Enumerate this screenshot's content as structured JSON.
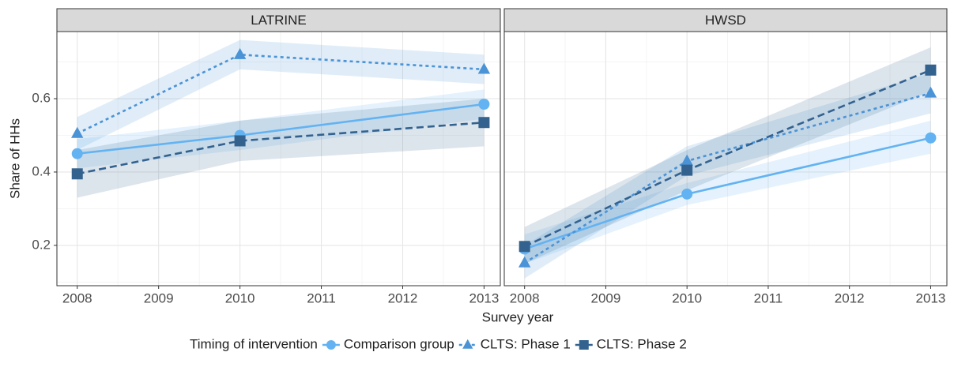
{
  "chart_data": [
    {
      "type": "line",
      "title": "LATRINE",
      "x": [
        2008,
        2010,
        2013
      ],
      "xlim": [
        2007.75,
        2013.2
      ],
      "xticks": [
        2008,
        2009,
        2010,
        2011,
        2012,
        2013
      ],
      "ylim": [
        0.09,
        0.783
      ],
      "yticks": [
        0.2,
        0.4,
        0.6
      ],
      "grid": true,
      "series": [
        {
          "name": "Comparison group",
          "color": "#63b3f2",
          "line_style": "solid",
          "marker": "circle",
          "values": [
            0.45,
            0.5,
            0.585
          ],
          "lower": [
            0.41,
            0.46,
            0.545
          ],
          "upper": [
            0.49,
            0.54,
            0.625
          ]
        },
        {
          "name": "CLTS: Phase 1",
          "color": "#4a93d6",
          "line_style": "dotted",
          "marker": "triangle",
          "values": [
            0.505,
            0.72,
            0.68
          ],
          "lower": [
            0.46,
            0.68,
            0.64
          ],
          "upper": [
            0.55,
            0.76,
            0.72
          ]
        },
        {
          "name": "CLTS: Phase 2",
          "color": "#33628f",
          "line_style": "dashed",
          "marker": "square",
          "values": [
            0.395,
            0.485,
            0.535
          ],
          "lower": [
            0.33,
            0.43,
            0.47
          ],
          "upper": [
            0.46,
            0.54,
            0.6
          ]
        }
      ]
    },
    {
      "type": "line",
      "title": "HWSD",
      "x": [
        2008,
        2010,
        2013
      ],
      "xlim": [
        2007.75,
        2013.2
      ],
      "xticks": [
        2008,
        2009,
        2010,
        2011,
        2012,
        2013
      ],
      "ylim": [
        0.09,
        0.783
      ],
      "yticks": [
        0.2,
        0.4,
        0.6
      ],
      "grid": true,
      "series": [
        {
          "color": "#63b3f2",
          "line_style": "solid",
          "marker": "circle",
          "values": [
            0.19,
            0.34,
            0.493
          ],
          "lower": [
            0.15,
            0.31,
            0.45
          ],
          "upper": [
            0.23,
            0.37,
            0.54
          ]
        },
        {
          "color": "#4a93d6",
          "line_style": "dotted",
          "marker": "triangle",
          "values": [
            0.152,
            0.43,
            0.615
          ],
          "lower": [
            0.11,
            0.39,
            0.56
          ],
          "upper": [
            0.2,
            0.47,
            0.67
          ]
        },
        {
          "color": "#33628f",
          "line_style": "dashed",
          "marker": "square",
          "values": [
            0.197,
            0.405,
            0.678
          ],
          "lower": [
            0.15,
            0.35,
            0.62
          ],
          "upper": [
            0.25,
            0.46,
            0.74
          ]
        }
      ]
    }
  ],
  "x_label": "Survey year",
  "y_label": "Share of HHs",
  "legend": {
    "title": "Timing of intervention",
    "position": "bottom"
  }
}
